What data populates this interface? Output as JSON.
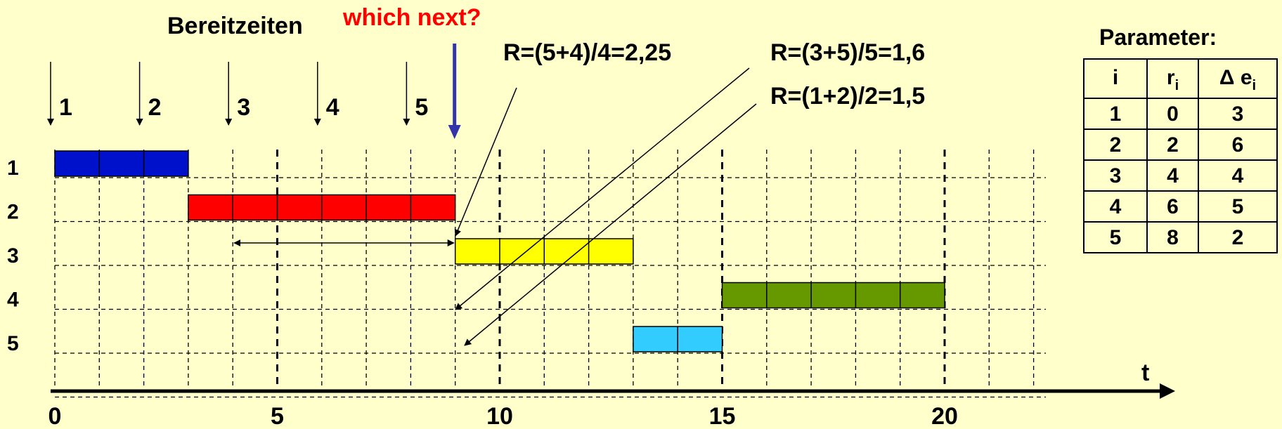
{
  "heading": "Bereitzeiten",
  "question": "which next?",
  "question_color": "#ff0000",
  "axis_label": "t",
  "ticks": [
    {
      "value": 0,
      "label": "0"
    },
    {
      "value": 5,
      "label": "5"
    },
    {
      "value": 10,
      "label": "10"
    },
    {
      "value": 15,
      "label": "15"
    },
    {
      "value": 20,
      "label": "20"
    }
  ],
  "rows": [
    {
      "id": 1,
      "label": "1"
    },
    {
      "id": 2,
      "label": "2"
    },
    {
      "id": 3,
      "label": "3"
    },
    {
      "id": 4,
      "label": "4"
    },
    {
      "id": 5,
      "label": "5"
    }
  ],
  "arrivals": [
    {
      "time": 0,
      "label": "1"
    },
    {
      "time": 2,
      "label": "2"
    },
    {
      "time": 4,
      "label": "3"
    },
    {
      "time": 6,
      "label": "4"
    },
    {
      "time": 8,
      "label": "5"
    }
  ],
  "decision_time": 9,
  "bars": [
    {
      "job": 1,
      "start": 0,
      "end": 3,
      "color": "#0011cc"
    },
    {
      "job": 2,
      "start": 3,
      "end": 9,
      "color": "#ff0000"
    },
    {
      "job": 3,
      "start": 9,
      "end": 13,
      "color": "#ffff00"
    },
    {
      "job": 4,
      "start": 15,
      "end": 20,
      "color": "#669900"
    },
    {
      "job": 5,
      "start": 13,
      "end": 15,
      "color": "#33ccff"
    }
  ],
  "wait_span": {
    "job": 3,
    "from": 4,
    "to": 9
  },
  "ratios": [
    {
      "text": "R=(5+4)/4=2,25",
      "job": 3
    },
    {
      "text": "R=(3+5)/5=1,6",
      "job": 4
    },
    {
      "text": "R=(1+2)/2=1,5",
      "job": 5
    }
  ],
  "param_table": {
    "title": "Parameter:",
    "headers": [
      {
        "main": "i",
        "sub": ""
      },
      {
        "main": "r",
        "sub": "i"
      },
      {
        "main": "Δ e",
        "sub": "i"
      }
    ],
    "rows": [
      [
        "1",
        "0",
        "3"
      ],
      [
        "2",
        "2",
        "6"
      ],
      [
        "3",
        "4",
        "4"
      ],
      [
        "4",
        "6",
        "5"
      ],
      [
        "5",
        "8",
        "2"
      ]
    ]
  },
  "axis_max": 22
}
